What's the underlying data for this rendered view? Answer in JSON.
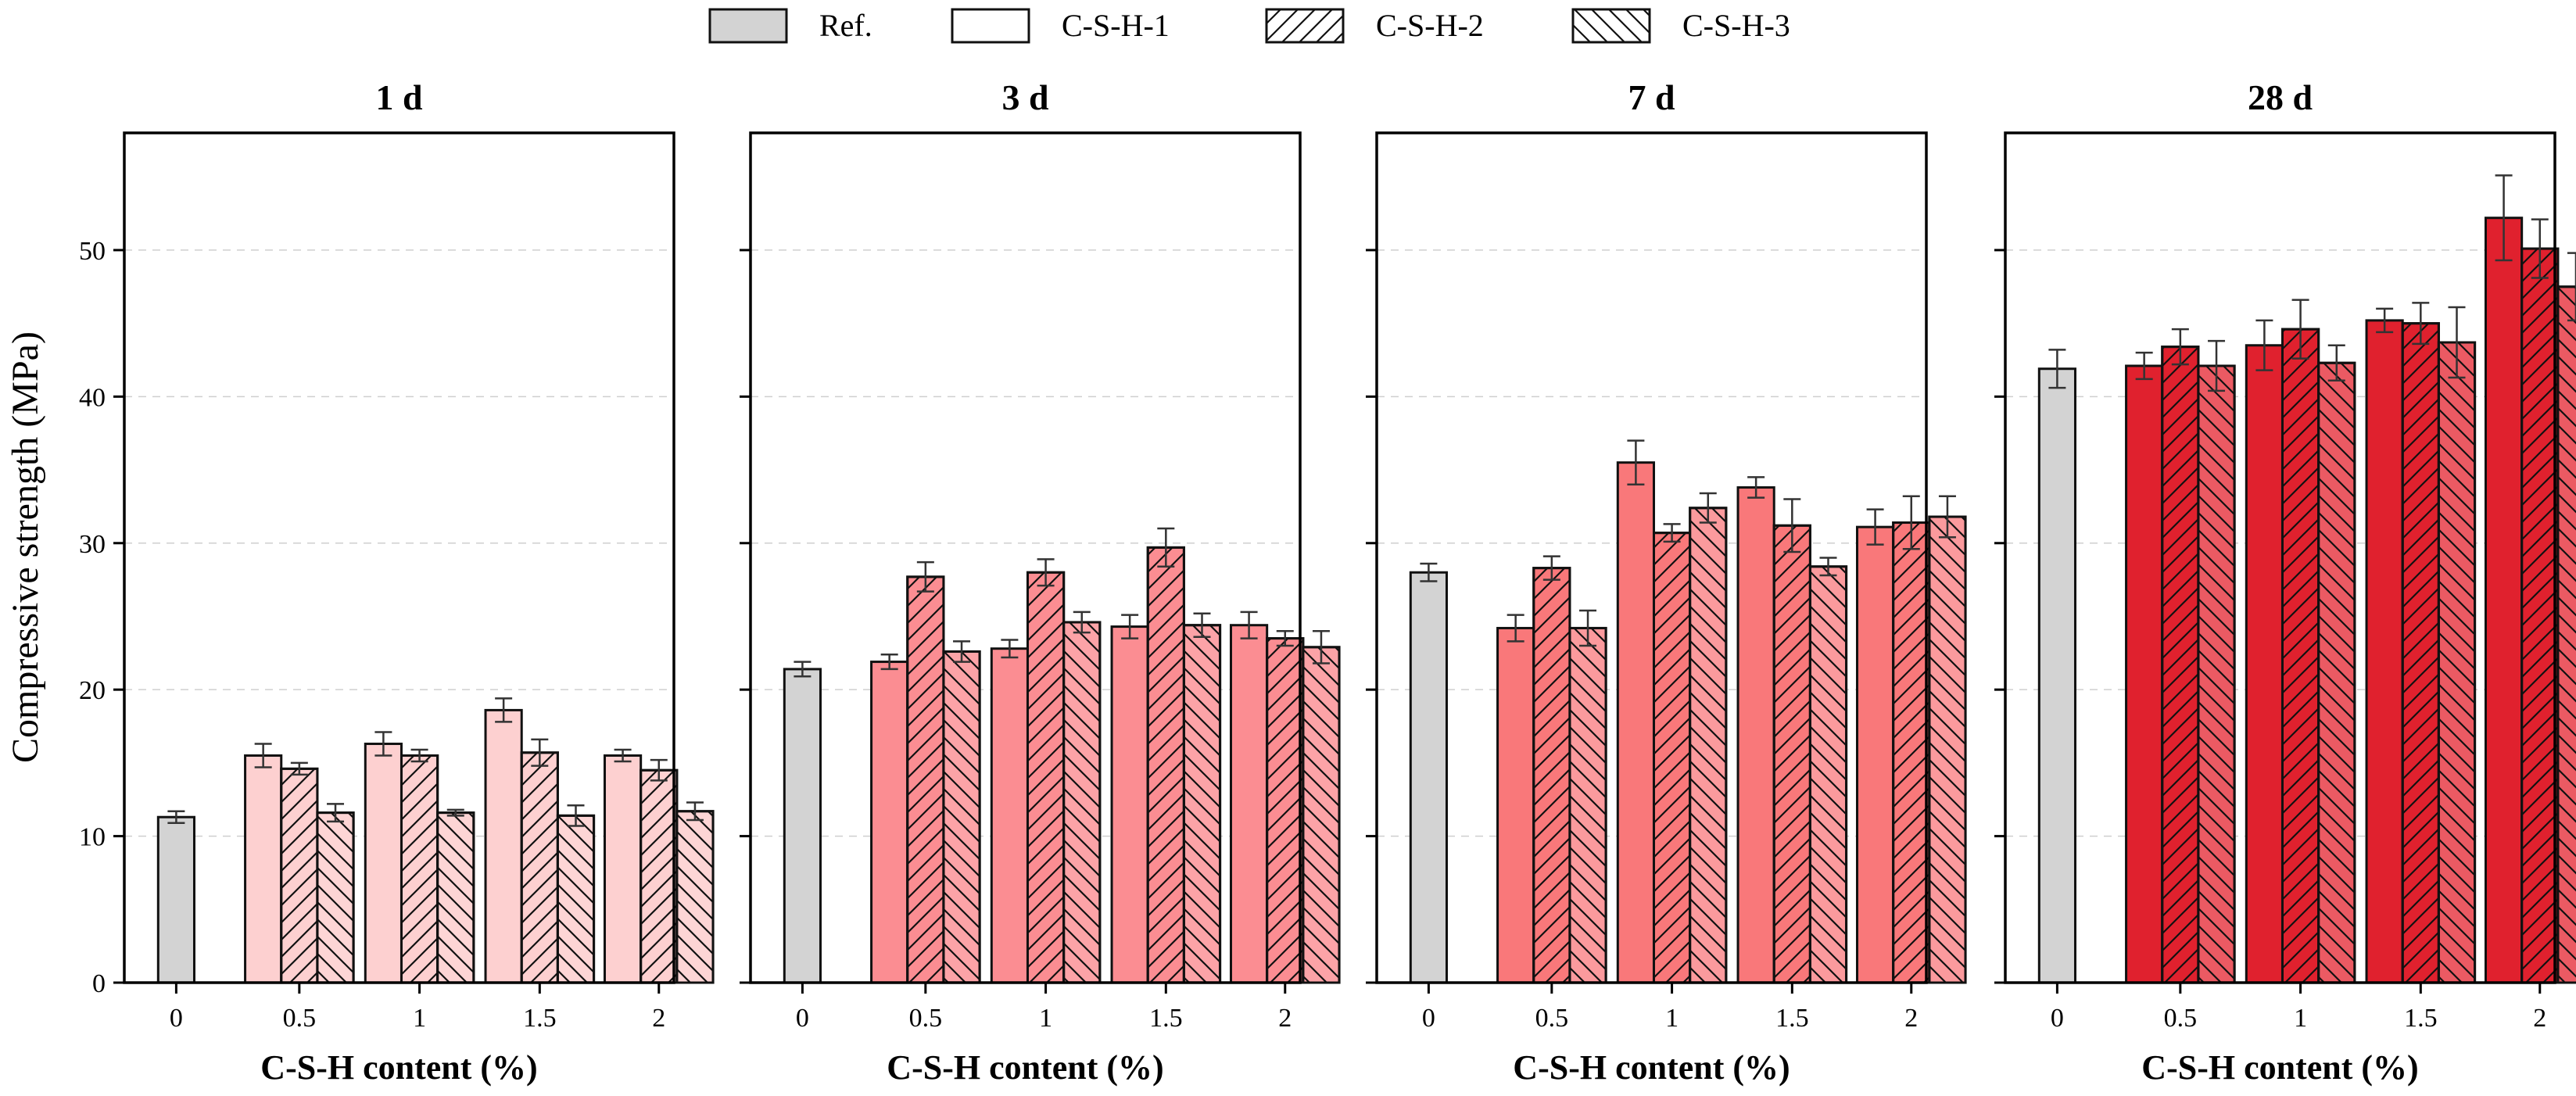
{
  "chart_data": {
    "type": "bar",
    "ylabel": "Compressive strength (MPa)",
    "xlabel": "C-S-H content (%)",
    "ylim": [
      0,
      58
    ],
    "yticks": [
      0,
      10,
      20,
      30,
      40,
      50
    ],
    "categories": [
      "0",
      "0.5",
      "1",
      "1.5",
      "2"
    ],
    "legend": {
      "position": "top-center",
      "entries": [
        {
          "label": "Ref.",
          "pattern": "solid-gray"
        },
        {
          "label": "C-S-H-1",
          "pattern": "plain"
        },
        {
          "label": "C-S-H-2",
          "pattern": "forward-hatch"
        },
        {
          "label": "C-S-H-3",
          "pattern": "backward-hatch"
        }
      ]
    },
    "panels": [
      {
        "title": "1 d",
        "ref": {
          "value": 11.3,
          "err": 0.4
        },
        "series": [
          {
            "name": "C-S-H-1",
            "values": [
              15.5,
              16.3,
              18.6,
              15.5
            ],
            "errors": [
              0.8,
              0.8,
              0.8,
              0.4
            ]
          },
          {
            "name": "C-S-H-2",
            "values": [
              14.6,
              15.5,
              15.7,
              14.5
            ],
            "errors": [
              0.4,
              0.4,
              0.9,
              0.7
            ]
          },
          {
            "name": "C-S-H-3",
            "values": [
              11.6,
              11.6,
              11.4,
              11.7
            ],
            "errors": [
              0.6,
              0.2,
              0.7,
              0.6
            ]
          }
        ],
        "colors": [
          "#fdd0d0",
          "#fdd0d0",
          "#fdd5d5"
        ]
      },
      {
        "title": "3 d",
        "ref": {
          "value": 21.4,
          "err": 0.5
        },
        "series": [
          {
            "name": "C-S-H-1",
            "values": [
              21.9,
              22.8,
              24.3,
              24.4
            ],
            "errors": [
              0.5,
              0.6,
              0.8,
              0.9
            ]
          },
          {
            "name": "C-S-H-2",
            "values": [
              27.7,
              28.0,
              29.7,
              23.5
            ],
            "errors": [
              1.0,
              0.9,
              1.3,
              0.5
            ]
          },
          {
            "name": "C-S-H-3",
            "values": [
              22.6,
              24.6,
              24.4,
              22.9
            ],
            "errors": [
              0.7,
              0.7,
              0.8,
              1.1
            ]
          }
        ],
        "colors": [
          "#fb8d92",
          "#fb8d92",
          "#fca3a7"
        ]
      },
      {
        "title": "7 d",
        "ref": {
          "value": 28.0,
          "err": 0.6
        },
        "series": [
          {
            "name": "C-S-H-1",
            "values": [
              24.2,
              35.5,
              33.8,
              31.1
            ],
            "errors": [
              0.9,
              1.5,
              0.7,
              1.2
            ]
          },
          {
            "name": "C-S-H-2",
            "values": [
              28.3,
              30.7,
              31.2,
              31.4
            ],
            "errors": [
              0.8,
              0.6,
              1.8,
              1.8
            ]
          },
          {
            "name": "C-S-H-3",
            "values": [
              24.2,
              32.4,
              28.4,
              31.8
            ],
            "errors": [
              1.2,
              1.0,
              0.6,
              1.4
            ]
          }
        ],
        "colors": [
          "#f9787a",
          "#f9787a",
          "#fb9a9d"
        ]
      },
      {
        "title": "28 d",
        "ref": {
          "value": 41.9,
          "err": 1.3
        },
        "series": [
          {
            "name": "C-S-H-1",
            "values": [
              42.1,
              43.5,
              45.2,
              52.2
            ],
            "errors": [
              0.9,
              1.7,
              0.8,
              2.9
            ]
          },
          {
            "name": "C-S-H-2",
            "values": [
              43.4,
              44.6,
              45.0,
              50.1
            ],
            "errors": [
              1.2,
              2.0,
              1.4,
              2.0
            ]
          },
          {
            "name": "C-S-H-3",
            "values": [
              42.1,
              42.3,
              43.7,
              47.5
            ],
            "errors": [
              1.7,
              1.2,
              2.4,
              2.3
            ]
          }
        ],
        "colors": [
          "#e0212e",
          "#e0212e",
          "#eb5a63"
        ]
      }
    ],
    "ref_color": "#d3d3d3"
  }
}
